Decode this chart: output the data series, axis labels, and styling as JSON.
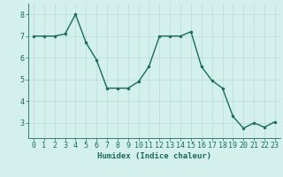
{
  "xlabel": "Humidex (Indice chaleur)",
  "x": [
    0,
    1,
    2,
    3,
    4,
    5,
    6,
    7,
    8,
    9,
    10,
    11,
    12,
    13,
    14,
    15,
    16,
    17,
    18,
    19,
    20,
    21,
    22,
    23
  ],
  "y": [
    7.0,
    7.0,
    7.0,
    7.1,
    8.0,
    6.7,
    5.9,
    4.6,
    4.6,
    4.6,
    4.9,
    5.6,
    7.0,
    7.0,
    7.0,
    7.2,
    5.6,
    4.95,
    4.6,
    3.3,
    2.75,
    3.0,
    2.8,
    3.05
  ],
  "line_color": "#1a6b5e",
  "marker": "o",
  "marker_size": 2.0,
  "bg_color": "#d4f0ec",
  "grid_color": "#b8dcd8",
  "ylim": [
    2.3,
    8.5
  ],
  "yticks": [
    3,
    4,
    5,
    6,
    7,
    8
  ],
  "xlim": [
    -0.5,
    23.5
  ],
  "label_fontsize": 6.5,
  "tick_fontsize": 6.0,
  "linewidth": 1.0
}
